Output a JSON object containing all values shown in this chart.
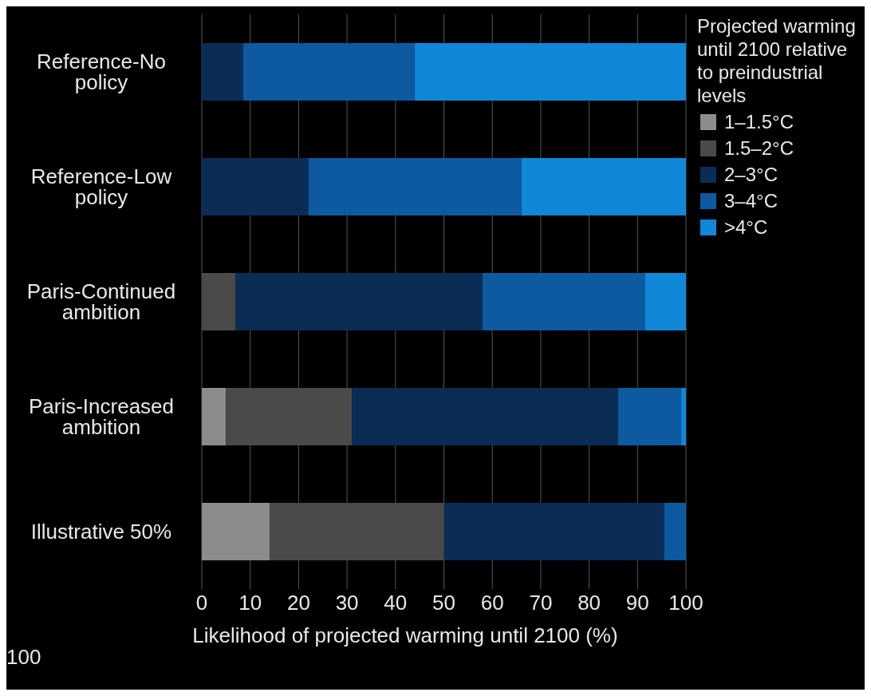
{
  "chart_data": {
    "type": "bar",
    "orientation": "horizontal",
    "stacked": true,
    "categories": [
      "Reference-No policy",
      "Reference-Low policy",
      "Paris-Continued ambition",
      "Paris-Increased ambition",
      "Illustrative 50%"
    ],
    "series": [
      {
        "name": "1–1.5°C",
        "color": "#8c8c8c",
        "values": [
          0,
          0,
          0,
          5,
          14
        ]
      },
      {
        "name": "1.5–2°C",
        "color": "#4a4a4a",
        "values": [
          0,
          0,
          7,
          26,
          36
        ]
      },
      {
        "name": "2–3°C",
        "color": "#0b2d55",
        "values": [
          8.5,
          22,
          51,
          55,
          45.5
        ]
      },
      {
        "name": "3–4°C",
        "color": "#0d5aa0",
        "values": [
          35.5,
          44,
          33.5,
          13,
          4.5
        ]
      },
      {
        "name": ">4°C",
        "color": "#1187d8",
        "values": [
          56,
          34,
          8.5,
          1,
          0
        ]
      }
    ],
    "xlabel": "Likelihood of projected warming until 2100 (%)",
    "legend_title": "Projected warming until 2100 relative to preindustrial levels",
    "xlim": [
      0,
      100
    ],
    "xticks": [
      0,
      10,
      20,
      30,
      40,
      50,
      60,
      70,
      80,
      90,
      100
    ],
    "grid": "x",
    "legend": "right",
    "annotations": [
      "100"
    ]
  }
}
